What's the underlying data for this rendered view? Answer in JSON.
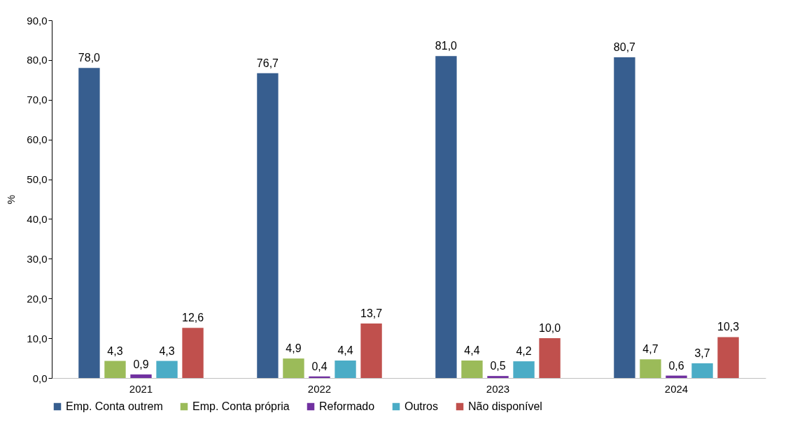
{
  "chart_data": {
    "type": "bar",
    "ylabel": "%",
    "categories": [
      "2021",
      "2022",
      "2023",
      "2024"
    ],
    "series": [
      {
        "name": "Emp. Conta outrem",
        "color": "#375e8f",
        "values": [
          78.0,
          76.7,
          81.0,
          80.7
        ],
        "value_labels": [
          "78,0",
          "76,7",
          "81,0",
          "80,7"
        ]
      },
      {
        "name": "Emp. Conta própria",
        "color": "#9bbb59",
        "values": [
          4.3,
          4.9,
          4.4,
          4.7
        ],
        "value_labels": [
          "4,3",
          "4,9",
          "4,4",
          "4,7"
        ]
      },
      {
        "name": "Reformado",
        "color": "#7030a0",
        "values": [
          0.9,
          0.4,
          0.5,
          0.6
        ],
        "value_labels": [
          "0,9",
          "0,4",
          "0,5",
          "0,6"
        ]
      },
      {
        "name": "Outros",
        "color": "#4bacc6",
        "values": [
          4.3,
          4.4,
          4.2,
          3.7
        ],
        "value_labels": [
          "4,3",
          "4,4",
          "4,2",
          "3,7"
        ]
      },
      {
        "name": "Não disponível",
        "color": "#c0504d",
        "values": [
          12.6,
          13.7,
          10.0,
          10.3
        ],
        "value_labels": [
          "12,6",
          "13,7",
          "10,0",
          "10,3"
        ]
      }
    ],
    "ylim": [
      0,
      90
    ],
    "yticks": [
      {
        "value": 0,
        "label": "0,0"
      },
      {
        "value": 10,
        "label": "10,0"
      },
      {
        "value": 20,
        "label": "20,0"
      },
      {
        "value": 30,
        "label": "30,0"
      },
      {
        "value": 40,
        "label": "40,0"
      },
      {
        "value": 50,
        "label": "50,0"
      },
      {
        "value": 60,
        "label": "60,0"
      },
      {
        "value": 70,
        "label": "70,0"
      },
      {
        "value": 80,
        "label": "80,0"
      },
      {
        "value": 90,
        "label": "90,0"
      }
    ],
    "grid": false,
    "legend": "bottom"
  }
}
